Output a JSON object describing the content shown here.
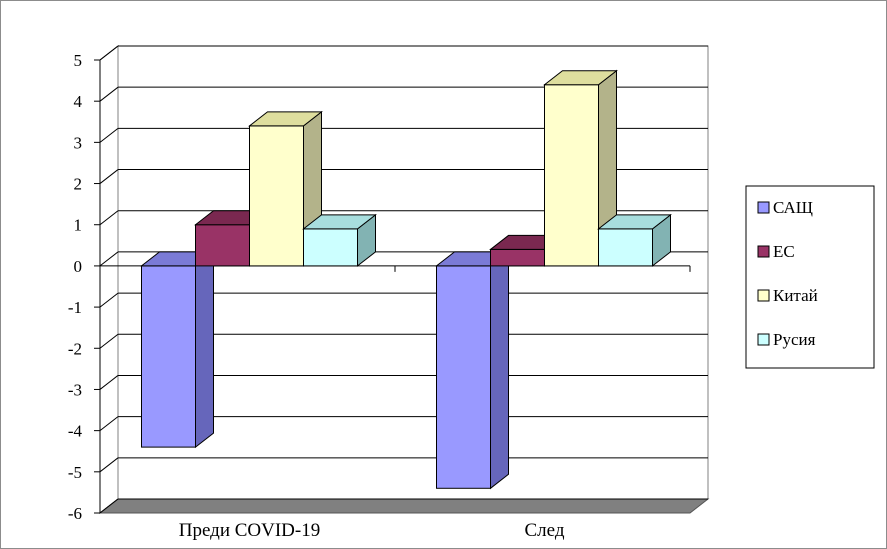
{
  "chart_data": {
    "type": "bar",
    "categories": [
      "Преди COVID-19",
      "След"
    ],
    "series": [
      {
        "name": "САЩ",
        "values": [
          -4.4,
          -5.4
        ],
        "color": "#9999ff",
        "side": "#6666bb",
        "top": "#7b7bd6"
      },
      {
        "name": "ЕС",
        "values": [
          1.0,
          0.4
        ],
        "color": "#993366",
        "side": "#6b2246",
        "top": "#7a2850"
      },
      {
        "name": "Китай",
        "values": [
          3.4,
          4.4
        ],
        "color": "#ffffcc",
        "side": "#b3b38a",
        "top": "#dede9e"
      },
      {
        "name": "Русия",
        "values": [
          0.9,
          0.9
        ],
        "color": "#ccffff",
        "side": "#82b3b3",
        "top": "#a8dede"
      }
    ],
    "ylim": [
      -6,
      5
    ],
    "yticks": [
      "5",
      "4",
      "3",
      "2",
      "1",
      "0",
      "-1",
      "-2",
      "-3",
      "-4",
      "-5",
      "-6"
    ],
    "grid": true,
    "legend": "right",
    "title": "",
    "xlabel": "",
    "ylabel": ""
  }
}
